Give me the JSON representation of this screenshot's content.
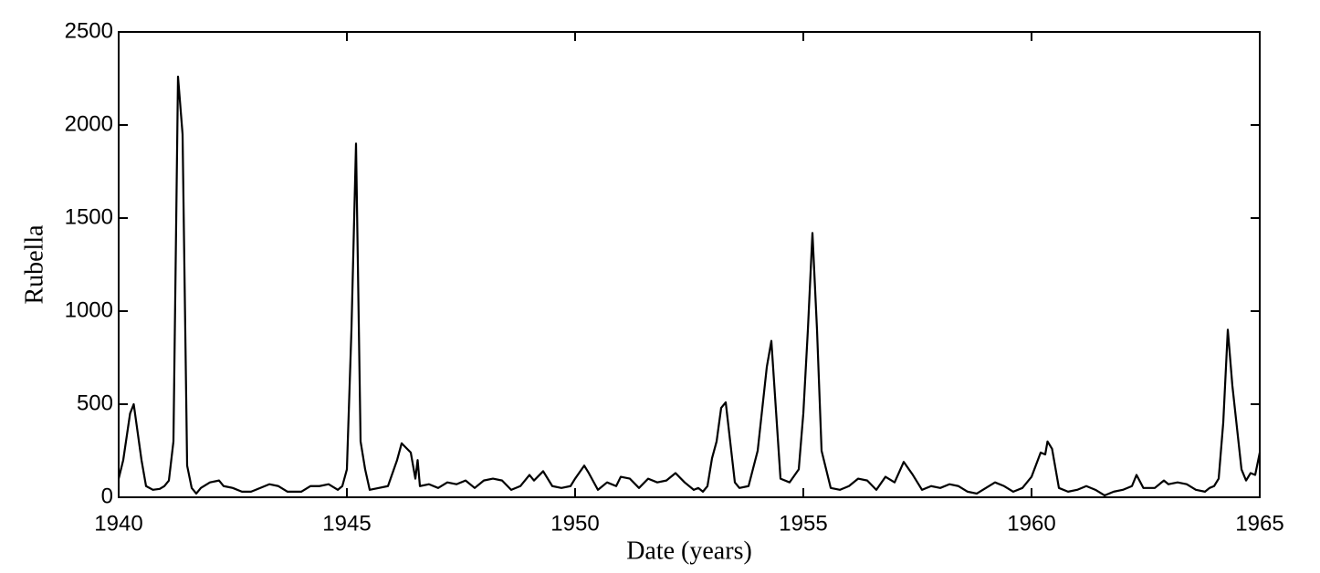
{
  "chart_data": {
    "type": "line",
    "x_label": "Date (years)",
    "y_label": "Rubella",
    "xlim": [
      1940,
      1965
    ],
    "xticks": [
      1940,
      1945,
      1950,
      1955,
      1960,
      1965
    ],
    "ylim": [
      0,
      2500
    ],
    "yticks": [
      0,
      500,
      1000,
      1500,
      2000,
      2500
    ],
    "series": [
      {
        "color": "#000000",
        "x": [
          1940.0,
          1940.1,
          1940.25,
          1940.33,
          1940.5,
          1940.6,
          1940.75,
          1940.9,
          1941.0,
          1941.1,
          1941.2,
          1941.3,
          1941.4,
          1941.5,
          1941.6,
          1941.7,
          1941.8,
          1942.0,
          1942.2,
          1942.3,
          1942.5,
          1942.7,
          1942.9,
          1943.0,
          1943.3,
          1943.5,
          1943.7,
          1944.0,
          1944.2,
          1944.4,
          1944.6,
          1944.8,
          1944.9,
          1945.0,
          1945.1,
          1945.2,
          1945.3,
          1945.4,
          1945.5,
          1945.7,
          1945.9,
          1946.1,
          1946.2,
          1946.4,
          1946.5,
          1946.55,
          1946.6,
          1946.8,
          1947.0,
          1947.2,
          1947.4,
          1947.6,
          1947.8,
          1948.0,
          1948.2,
          1948.4,
          1948.6,
          1948.8,
          1949.0,
          1949.1,
          1949.3,
          1949.5,
          1949.7,
          1949.9,
          1950.0,
          1950.2,
          1950.3,
          1950.5,
          1950.7,
          1950.9,
          1951.0,
          1951.2,
          1951.4,
          1951.6,
          1951.8,
          1952.0,
          1952.2,
          1952.4,
          1952.6,
          1952.7,
          1952.8,
          1952.9,
          1953.0,
          1953.1,
          1953.2,
          1953.3,
          1953.5,
          1953.6,
          1953.8,
          1954.0,
          1954.2,
          1954.3,
          1954.5,
          1954.7,
          1954.9,
          1955.0,
          1955.1,
          1955.2,
          1955.3,
          1955.4,
          1955.6,
          1955.8,
          1956.0,
          1956.2,
          1956.4,
          1956.6,
          1956.8,
          1957.0,
          1957.2,
          1957.4,
          1957.6,
          1957.8,
          1958.0,
          1958.2,
          1958.4,
          1958.6,
          1958.8,
          1959.0,
          1959.2,
          1959.4,
          1959.6,
          1959.8,
          1960.0,
          1960.2,
          1960.3,
          1960.35,
          1960.45,
          1960.6,
          1960.8,
          1961.0,
          1961.2,
          1961.4,
          1961.6,
          1961.8,
          1962.0,
          1962.2,
          1962.3,
          1962.45,
          1962.7,
          1962.9,
          1963.0,
          1963.2,
          1963.4,
          1963.6,
          1963.8,
          1963.9,
          1964.0,
          1964.1,
          1964.2,
          1964.3,
          1964.4,
          1964.6,
          1964.7,
          1964.8,
          1964.9,
          1965.0
        ],
        "values": [
          100,
          200,
          450,
          500,
          200,
          60,
          40,
          45,
          60,
          90,
          300,
          2260,
          1950,
          170,
          50,
          20,
          50,
          80,
          90,
          60,
          50,
          30,
          30,
          40,
          70,
          60,
          30,
          30,
          60,
          60,
          70,
          40,
          60,
          150,
          900,
          1900,
          300,
          150,
          40,
          50,
          60,
          200,
          290,
          240,
          100,
          200,
          60,
          70,
          50,
          80,
          70,
          90,
          50,
          90,
          100,
          90,
          40,
          60,
          120,
          90,
          140,
          60,
          50,
          60,
          100,
          170,
          130,
          40,
          80,
          60,
          110,
          100,
          50,
          100,
          80,
          90,
          130,
          80,
          40,
          50,
          30,
          60,
          210,
          300,
          480,
          510,
          80,
          50,
          60,
          250,
          700,
          840,
          100,
          80,
          150,
          450,
          900,
          1420,
          900,
          250,
          50,
          40,
          60,
          100,
          90,
          40,
          110,
          80,
          190,
          120,
          40,
          60,
          50,
          70,
          60,
          30,
          20,
          50,
          80,
          60,
          30,
          50,
          110,
          240,
          230,
          300,
          260,
          50,
          30,
          40,
          60,
          40,
          10,
          30,
          40,
          60,
          120,
          50,
          50,
          90,
          70,
          80,
          70,
          40,
          30,
          50,
          60,
          100,
          400,
          900,
          600,
          150,
          90,
          130,
          120,
          240
        ]
      }
    ]
  }
}
